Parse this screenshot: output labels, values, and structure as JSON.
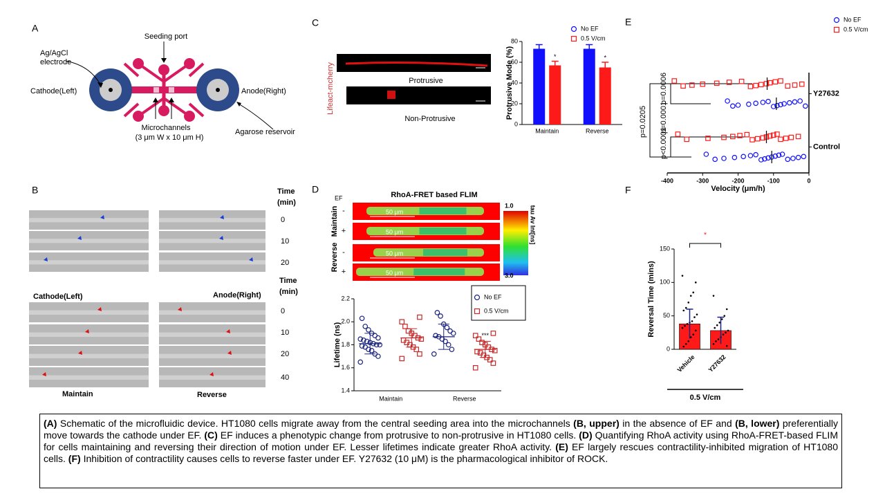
{
  "panel_letters": [
    "A",
    "B",
    "C",
    "D",
    "E",
    "F"
  ],
  "panel_a": {
    "seeding_port": "Seeding port",
    "electrode": [
      "Ag/AgCl",
      "electrode"
    ],
    "cathode": "Cathode(Left)",
    "anode": "Anode(Right)",
    "microchannels": [
      "Microchannels",
      "(3 μm W x 10 μm H)"
    ],
    "reservoir": "Agarose reservoir"
  },
  "panel_b": {
    "time_upper": [
      "Time",
      "(min)"
    ],
    "times_upper": [
      "0",
      "10",
      "20"
    ],
    "time_lower": [
      "Time",
      "(min)"
    ],
    "times_lower": [
      "0",
      "10",
      "20",
      "40"
    ],
    "cathode": "Cathode(Left)",
    "anode": "Anode(Right)",
    "maintain": "Maintain",
    "reverse": "Reverse"
  },
  "panel_c_images": {
    "stain": "Lifeact-mcherry",
    "protrusive": "Protrusive",
    "non_protrusive": "Non-Protrusive"
  },
  "panel_d_images": {
    "title": "RhoA-FRET  based FLIM",
    "ef": "EF",
    "signs": [
      "-",
      "+",
      "-",
      "+"
    ],
    "row_groups": [
      "Reverse",
      "Maintain"
    ],
    "scale_bar": "50 μm",
    "colorbar_top": "1.0",
    "colorbar_bottom": "3.0",
    "colorbar_label": "tau Av Int[ns]"
  },
  "panel_e_pvalues": [
    "p=0.0205",
    "p=0.0006",
    "p=0.0001",
    "p<0.0001"
  ],
  "chart_data": [
    {
      "type": "bar",
      "ylabel": "Protrusive Mode (%)",
      "categories": [
        "Maintain",
        "Reverse"
      ],
      "ylim": [
        0,
        80
      ],
      "yticks": [
        0,
        20,
        40,
        60,
        80
      ],
      "series": [
        {
          "name": "No EF",
          "color": "#1010ff",
          "marker": "circle",
          "values": [
            73,
            73
          ],
          "errors": [
            4,
            4
          ]
        },
        {
          "name": "0.5 V/cm",
          "color": "#ff1a1a",
          "marker": "square",
          "values": [
            57,
            55
          ],
          "errors": [
            4,
            5
          ],
          "sig_labels": [
            "*",
            "*"
          ]
        }
      ]
    },
    {
      "type": "scatter",
      "ylabel": "Lifetime (ns)",
      "categories": [
        "Maintain",
        "Reverse"
      ],
      "ylim": [
        1.4,
        2.2
      ],
      "yticks": [
        1.4,
        1.6,
        1.8,
        {
          "value": 2,
          "label": "2.0"
        },
        2.2
      ],
      "series": [
        {
          "name": "No EF",
          "color": "#1a237e",
          "marker": "circle",
          "values": [
            [
              1.65,
              1.7,
              1.72,
              1.75,
              1.76,
              1.78,
              1.79,
              1.8,
              1.8,
              1.81,
              1.82,
              1.83,
              1.84,
              1.85,
              1.86,
              1.88,
              1.9,
              1.93,
              1.96,
              2.03
            ],
            [
              1.72,
              1.76,
              1.8,
              1.83,
              1.85,
              1.87,
              1.88,
              1.9,
              1.92,
              1.95,
              1.98,
              2.05,
              2.08
            ]
          ],
          "means": [
            1.81,
            1.87
          ],
          "sds": [
            0.09,
            0.11
          ]
        },
        {
          "name": "0.5 V/cm",
          "color": "#c62828",
          "marker": "square",
          "values": [
            [
              1.68,
              1.72,
              1.76,
              1.78,
              1.8,
              1.82,
              1.84,
              1.85,
              1.86,
              1.88,
              1.9,
              1.92,
              1.96,
              2.0,
              2.04
            ],
            [
              1.6,
              1.64,
              1.67,
              1.69,
              1.71,
              1.73,
              1.74,
              1.75,
              1.76,
              1.78,
              1.8,
              1.82,
              1.85,
              1.88,
              1.9
            ]
          ],
          "means": [
            1.86,
            1.76
          ],
          "sds": [
            0.08,
            0.07
          ],
          "sig_labels": [
            null,
            "***"
          ]
        }
      ]
    },
    {
      "type": "scatter",
      "orientation": "horizontal",
      "xlabel": "Velocity (μm/h)",
      "categories": [
        "Control",
        "Y27632"
      ],
      "xlim": [
        -400,
        0
      ],
      "xticks": [
        -400,
        -300,
        -200,
        -100,
        0
      ],
      "series": [
        {
          "name": "No EF",
          "color": "#1010ff",
          "marker": "circle",
          "values": [
            [
              -290,
              -265,
              -240,
              -210,
              -185,
              -165,
              -150,
              -135,
              -125,
              -115,
              -105,
              -95,
              -85,
              -75,
              -60,
              -45,
              -30,
              -15
            ],
            [
              -230,
              -215,
              -200,
              -170,
              -150,
              -130,
              -115,
              -100,
              -90,
              -80,
              -70,
              -55,
              -40,
              -25,
              -10
            ]
          ],
          "means": [
            -105,
            -92
          ]
        },
        {
          "name": "0.5 V/cm",
          "color": "#ff1a1a",
          "marker": "square",
          "values": [
            [
              -370,
              -345,
              -285,
              -240,
              -215,
              -195,
              -175,
              -160,
              -145,
              -130,
              -120,
              -110,
              -100,
              -90,
              -80,
              -65,
              -50,
              -30
            ],
            [
              -380,
              -355,
              -330,
              -300,
              -260,
              -225,
              -190,
              -165,
              -150,
              -135,
              -120,
              -110,
              -95,
              -80,
              -60,
              -40,
              -20
            ]
          ],
          "means": [
            -120,
            -118
          ]
        }
      ]
    },
    {
      "type": "bar",
      "ylabel": "Reversal Time (mins)",
      "xlabel": "0.5 V/cm",
      "categories": [
        "Vehicle",
        "Y27632"
      ],
      "ylim": [
        0,
        150
      ],
      "yticks": [
        0,
        50,
        100,
        150
      ],
      "significance": "*",
      "color": "#ff1a1a",
      "values": [
        38,
        28
      ],
      "errors": [
        22,
        20
      ],
      "points": [
        [
          110,
          100,
          85,
          80,
          70,
          62,
          58,
          52,
          48,
          42,
          40,
          38,
          35,
          32,
          28,
          22,
          18,
          12,
          8,
          4
        ],
        [
          80,
          60,
          50,
          45,
          40,
          36,
          32,
          28,
          25,
          22,
          18,
          15,
          12,
          8,
          5
        ]
      ]
    }
  ],
  "caption": [
    {
      "text": "(A)",
      "bold": true
    },
    " Schematic of the microfluidic device. HT1080 cells migrate away from the central seeding area into the microchannels ",
    {
      "text": "(B, upper)",
      "bold": true
    },
    " in the absence of EF and ",
    {
      "text": "(B, lower)",
      "bold": true
    },
    " preferentially move towards the cathode under EF. ",
    {
      "text": "(C)",
      "bold": true
    },
    " EF induces a phenotypic change from protrusive to non-protrusive in HT1080 cells. ",
    {
      "text": "(D)",
      "bold": true
    },
    " Quantifying RhoA activity using RhoA-FRET-based FLIM for cells maintaining and reversing their direction of motion under EF. Lesser lifetimes indicate greater RhoA activity. ",
    {
      "text": "(E)",
      "bold": true
    },
    " EF largely rescues contractility-inhibited migration of HT1080 cells. ",
    {
      "text": "(F)",
      "bold": true
    },
    " Inhibition of contractility causes cells to reverse faster under EF. Y27632 (10 μM) is the pharmacological inhibitor of ROCK."
  ]
}
